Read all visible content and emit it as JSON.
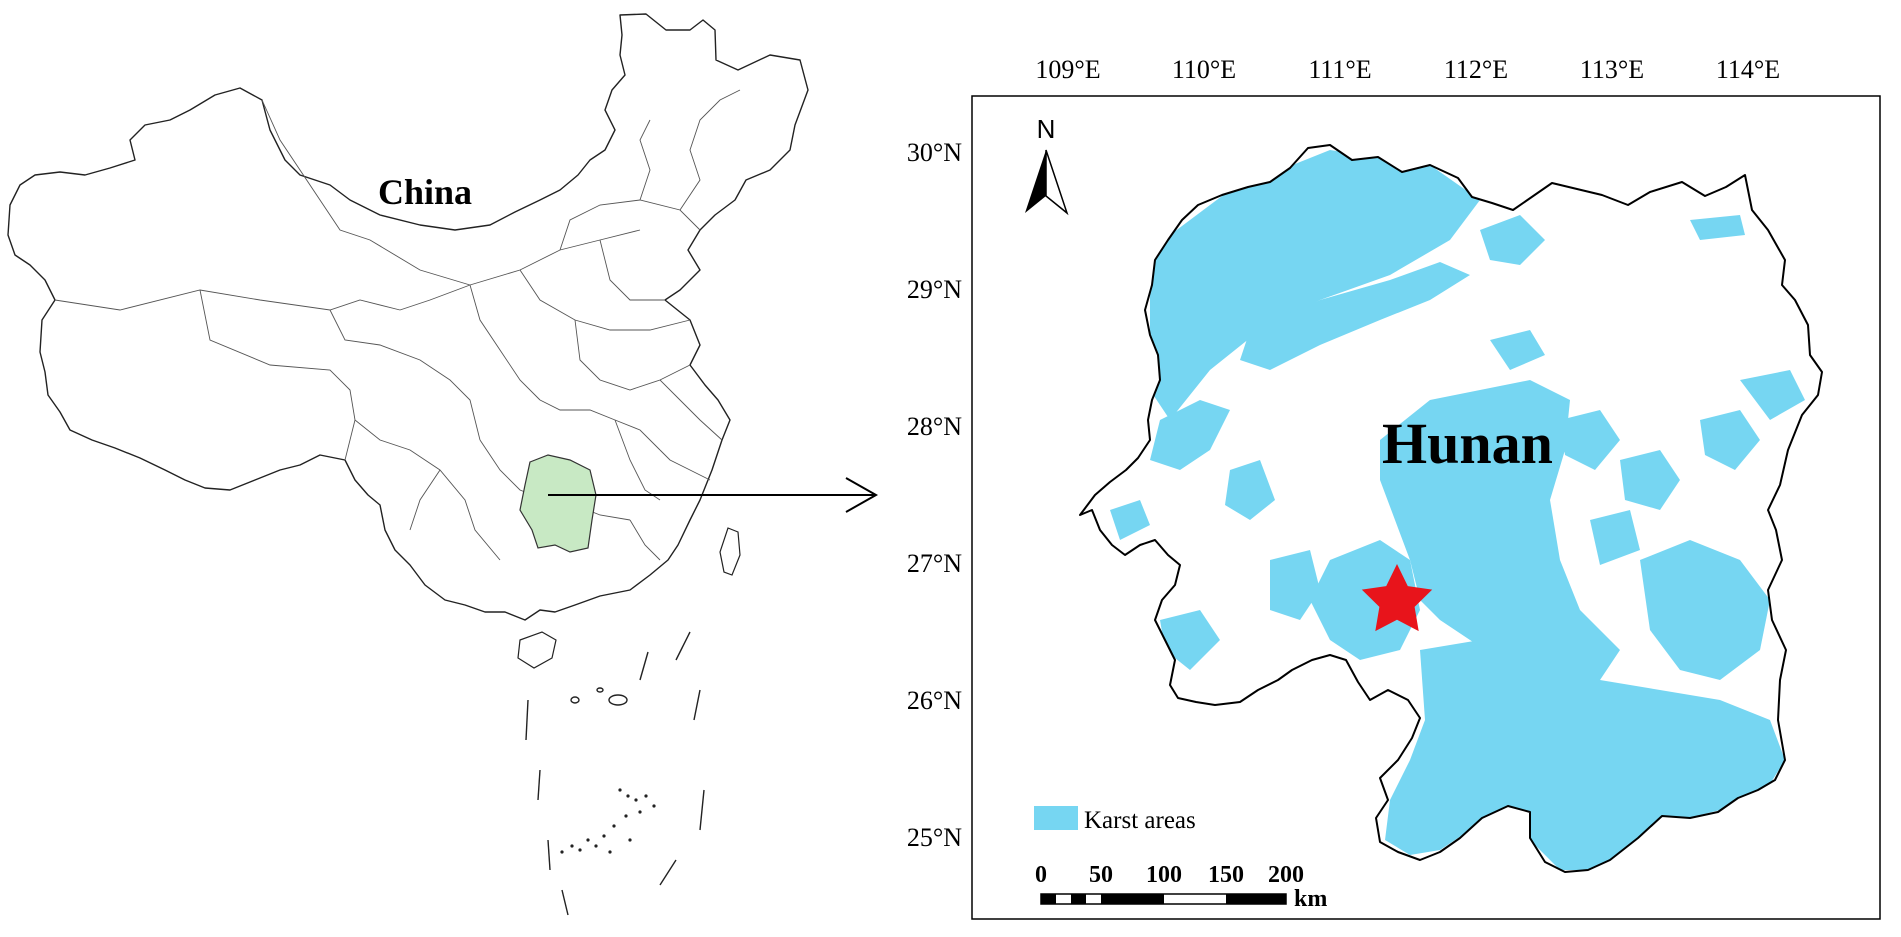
{
  "overview_map": {
    "country_label": "China",
    "highlight_color": "#c8e9c4"
  },
  "detail_map": {
    "region_label": "Hunan",
    "karst_color": "#76d6f2",
    "star_color": "#e8141b",
    "top_axis_labels": [
      "109°E",
      "110°E",
      "111°E",
      "112°E",
      "113°E",
      "114°E"
    ],
    "left_axis_labels": [
      "30°N",
      "29°N",
      "28°N",
      "27°N",
      "26°N",
      "25°N"
    ],
    "north_arrow_label": "N",
    "legend": {
      "swatch_color": "#76d6f2",
      "label": "Karst areas"
    },
    "scale_bar": {
      "tick_labels": [
        "0",
        "50",
        "100",
        "150",
        "200"
      ],
      "unit": "km"
    }
  }
}
